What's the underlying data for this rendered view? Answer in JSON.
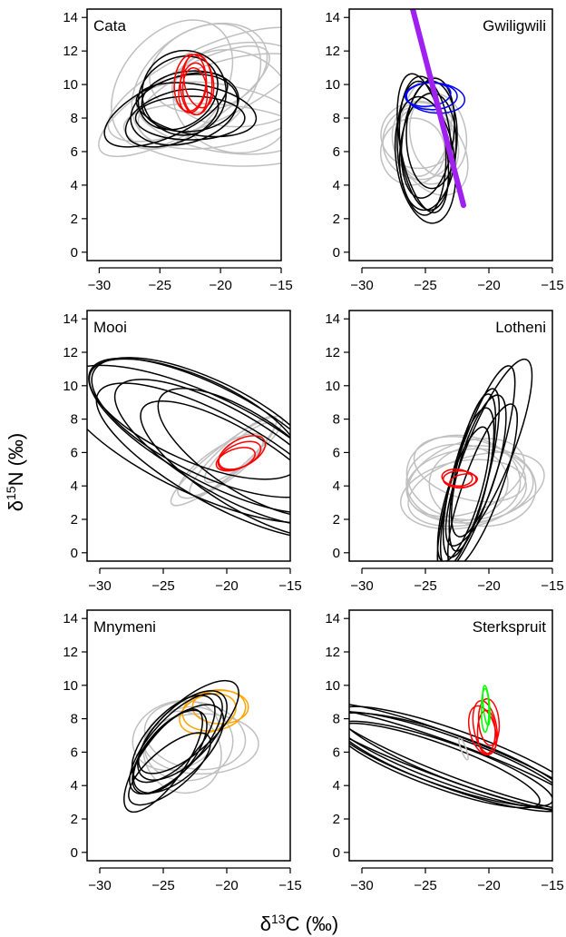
{
  "figure": {
    "xlabel_main": "δ",
    "xlabel_sup": "13",
    "xlabel_rest": "C (‰)",
    "ylabel_main": "δ",
    "ylabel_sup": "15",
    "ylabel_rest": "N (‰)"
  },
  "colors": {
    "background_ellipses": "#c0c0c0",
    "fish_ellipses": "#000000",
    "red": "#ff0000",
    "blue": "#0000ff",
    "purple": "#a020f0",
    "orange": "#ffa500",
    "green": "#00ff00"
  },
  "chart_data": [
    {
      "type": "scatter",
      "title": "Cata",
      "xlim": [
        -31,
        -15
      ],
      "ylim": [
        -0.5,
        14.5
      ],
      "xticks": [
        -30,
        -25,
        -20,
        -15
      ],
      "yticks": [
        0,
        2,
        4,
        6,
        8,
        10,
        12,
        14
      ],
      "show_xticks": true,
      "show_yticks": true,
      "series": [
        {
          "color": "gray",
          "ellipses": [
            [
              -21,
              10,
              9,
              2.2,
              25
            ],
            [
              -19,
              9,
              8,
              2.5,
              15
            ],
            [
              -22,
              10,
              6,
              3,
              40
            ],
            [
              -20,
              8,
              7,
              2,
              -10
            ],
            [
              -23,
              9,
              8,
              1.8,
              30
            ],
            [
              -18,
              10,
              6,
              2.5,
              5
            ],
            [
              -21,
              11,
              5,
              2.5,
              20
            ],
            [
              -20,
              7,
              8,
              1.8,
              -5
            ],
            [
              -24,
              10,
              6,
              3,
              50
            ],
            [
              -19,
              9,
              5,
              3,
              -20
            ]
          ]
        },
        {
          "color": "black",
          "ellipses": [
            [
              -24.5,
              8.5,
              5.5,
              1.6,
              25
            ],
            [
              -23,
              8.5,
              4.5,
              2,
              15
            ],
            [
              -22.5,
              9,
              4,
              1.8,
              5
            ],
            [
              -23.5,
              9.5,
              3.5,
              2,
              35
            ],
            [
              -22,
              8.5,
              5,
              1.5,
              -10
            ],
            [
              -24,
              8,
              4,
              1.5,
              20
            ],
            [
              -23,
              9.5,
              3.5,
              2.5,
              60
            ],
            [
              -22.5,
              8,
              4.5,
              1.3,
              0
            ]
          ]
        },
        {
          "color": "red",
          "ellipses": [
            [
              -22,
              10,
              1.3,
              1.8,
              0
            ],
            [
              -22.3,
              9.8,
              1.1,
              1.5,
              -10
            ],
            [
              -21.8,
              10.2,
              1.2,
              1.6,
              10
            ],
            [
              -22.1,
              9.6,
              1.0,
              1.4,
              5
            ],
            [
              -22.5,
              10.1,
              1.3,
              1.7,
              -5
            ]
          ]
        }
      ]
    },
    {
      "type": "scatter",
      "title": "Gwiligwili",
      "xlim": [
        -31,
        -15
      ],
      "ylim": [
        -0.5,
        14.5
      ],
      "xticks": [
        -30,
        -25,
        -20,
        -15
      ],
      "yticks": [
        0,
        2,
        4,
        6,
        8,
        10,
        12,
        14
      ],
      "show_xticks": true,
      "show_yticks": true,
      "series": [
        {
          "color": "gray",
          "ellipses": [
            [
              -25,
              6.5,
              2.5,
              2.5,
              20
            ],
            [
              -25.5,
              7,
              3,
              2,
              0
            ],
            [
              -24.5,
              6,
              2.5,
              2.8,
              30
            ],
            [
              -25,
              7.5,
              2,
              3,
              -10
            ],
            [
              -25.5,
              6.5,
              2.8,
              2.2,
              45
            ],
            [
              -24,
              7,
              2.2,
              2.5,
              10
            ],
            [
              -26,
              6,
              2.5,
              2,
              -20
            ]
          ]
        },
        {
          "color": "black",
          "ellipses": [
            [
              -25,
              6.5,
              2,
              4,
              5
            ],
            [
              -24.8,
              6,
              2.2,
              3.5,
              -5
            ],
            [
              -25.2,
              6.5,
              1.8,
              4.2,
              10
            ],
            [
              -24.5,
              7,
              2,
              3.2,
              0
            ],
            [
              -25,
              5.5,
              2.3,
              3.8,
              8
            ],
            [
              -24.8,
              6.8,
              2,
              3.6,
              -8
            ],
            [
              -25.3,
              6.2,
              1.9,
              4,
              3
            ]
          ]
        },
        {
          "color": "blue",
          "ellipses": [
            [
              -24.5,
              9.3,
              2,
              0.8,
              0
            ],
            [
              -24.2,
              9.2,
              2.3,
              0.9,
              -5
            ],
            [
              -24.8,
              9.4,
              1.8,
              0.7,
              5
            ]
          ]
        },
        {
          "color": "purple",
          "segments": [
            [
              -26,
              14.5,
              -22,
              2.8
            ]
          ]
        }
      ]
    },
    {
      "type": "scatter",
      "title": "Mooi",
      "xlim": [
        -31,
        -15
      ],
      "ylim": [
        -0.5,
        14.5
      ],
      "xticks": [
        -30,
        -25,
        -20,
        -15
      ],
      "yticks": [
        0,
        2,
        4,
        6,
        8,
        10,
        12,
        14
      ],
      "show_xticks": true,
      "show_yticks": true,
      "series": [
        {
          "color": "gray",
          "ellipses": [
            [
              -20,
              5.5,
              5.5,
              0.9,
              38
            ],
            [
              -19.5,
              5.8,
              4.5,
              0.8,
              42
            ],
            [
              -20.5,
              5.2,
              4,
              1,
              35
            ],
            [
              -19,
              6,
              3.5,
              0.7,
              40
            ]
          ]
        },
        {
          "color": "black",
          "ellipses": [
            [
              -21,
              7,
              11,
              2.8,
              -28
            ],
            [
              -20,
              6,
              10,
              2.5,
              -30
            ],
            [
              -22,
              6.5,
              12,
              3,
              -25
            ],
            [
              -19,
              5,
              9,
              2.2,
              -32
            ],
            [
              -21.5,
              7.5,
              10,
              2.8,
              -26
            ],
            [
              -20.5,
              5.5,
              11,
              2.6,
              -29
            ],
            [
              -18.5,
              6,
              8,
              2.3,
              -33
            ],
            [
              -22.5,
              8,
              9,
              2.5,
              -24
            ]
          ]
        },
        {
          "color": "red",
          "ellipses": [
            [
              -19,
              5.8,
              1.8,
              0.7,
              25
            ],
            [
              -19.3,
              5.6,
              1.6,
              0.6,
              20
            ],
            [
              -18.8,
              6,
              2,
              0.8,
              28
            ]
          ]
        }
      ]
    },
    {
      "type": "scatter",
      "title": "Lotheni",
      "xlim": [
        -31,
        -15
      ],
      "ylim": [
        -0.5,
        14.5
      ],
      "xticks": [
        -30,
        -25,
        -20,
        -15
      ],
      "yticks": [
        0,
        2,
        4,
        6,
        8,
        10,
        12,
        14
      ],
      "show_xticks": true,
      "show_yticks": true,
      "series": [
        {
          "color": "gray",
          "ellipses": [
            [
              -21.5,
              4,
              5,
              2.2,
              5
            ],
            [
              -22,
              4.5,
              4.5,
              2.5,
              -10
            ],
            [
              -21,
              3.8,
              5.5,
              2,
              15
            ],
            [
              -22.5,
              4.2,
              4,
              2.3,
              0
            ],
            [
              -21.8,
              4.5,
              4.8,
              2.1,
              20
            ],
            [
              -20.5,
              4,
              4.2,
              2.4,
              -5
            ],
            [
              -22,
              3.5,
              5,
              2,
              10
            ],
            [
              -21.5,
              5,
              4.5,
              1.8,
              -15
            ]
          ]
        },
        {
          "color": "black",
          "ellipses": [
            [
              -21,
              5,
              1.6,
              6.5,
              -18
            ],
            [
              -21.5,
              4.5,
              1.4,
              5.5,
              -15
            ],
            [
              -20.5,
              4,
              1.5,
              5.2,
              -20
            ],
            [
              -21.3,
              4.8,
              1.3,
              4.8,
              -12
            ],
            [
              -20.8,
              5.2,
              1.5,
              4.4,
              -16
            ],
            [
              -21.6,
              4.2,
              1.4,
              4.6,
              -14
            ],
            [
              -22,
              3.5,
              1.3,
              4.2,
              -17
            ],
            [
              -20,
              6,
              1.8,
              6,
              -22
            ]
          ]
        },
        {
          "color": "red",
          "ellipses": [
            [
              -22.3,
              4.4,
              1.3,
              0.5,
              0
            ],
            [
              -22,
              4.3,
              1.1,
              0.4,
              10
            ],
            [
              -22.5,
              4.5,
              1.2,
              0.5,
              -5
            ]
          ]
        }
      ]
    },
    {
      "type": "scatter",
      "title": "Mnymeni",
      "xlim": [
        -31,
        -15
      ],
      "ylim": [
        -0.5,
        14.5
      ],
      "xticks": [
        -30,
        -25,
        -20,
        -15
      ],
      "yticks": [
        0,
        2,
        4,
        6,
        8,
        10,
        12,
        14
      ],
      "show_xticks": true,
      "show_yticks": true,
      "series": [
        {
          "color": "gray",
          "ellipses": [
            [
              -23,
              6.5,
              3.5,
              2.2,
              10
            ],
            [
              -22.5,
              7,
              4,
              2,
              -10
            ],
            [
              -23.5,
              6,
              3,
              2.5,
              30
            ],
            [
              -22,
              6.5,
              4.5,
              1.8,
              0
            ],
            [
              -24,
              7,
              3.5,
              2,
              20
            ]
          ]
        },
        {
          "color": "orange",
          "ellipses": [
            [
              -21,
              8.5,
              2.5,
              1.2,
              10
            ],
            [
              -20.5,
              8.7,
              2.2,
              1,
              0
            ],
            [
              -21.5,
              8.3,
              2.3,
              1.1,
              20
            ]
          ]
        },
        {
          "color": "black",
          "ellipses": [
            [
              -24,
              6.5,
              5,
              1.5,
              48
            ],
            [
              -23.5,
              7,
              4.5,
              1.6,
              45
            ],
            [
              -24.5,
              6,
              4,
              1.4,
              50
            ],
            [
              -23,
              7.5,
              5,
              1.5,
              42
            ],
            [
              -24.2,
              6.8,
              4.3,
              1.5,
              47
            ],
            [
              -25,
              5.5,
              4.8,
              1.3,
              55
            ],
            [
              -23.8,
              6.2,
              4.5,
              1.6,
              44
            ],
            [
              -24.5,
              5,
              4,
              1.2,
              40
            ]
          ]
        }
      ]
    },
    {
      "type": "scatter",
      "title": "Sterkspruit",
      "xlim": [
        -31,
        -15
      ],
      "ylim": [
        -0.5,
        14.5
      ],
      "xticks": [
        -30,
        -25,
        -20,
        -15
      ],
      "yticks": [
        0,
        2,
        4,
        6,
        8,
        10,
        12,
        14
      ],
      "show_xticks": true,
      "show_yticks": true,
      "series": [
        {
          "color": "black",
          "ellipses": [
            [
              -23,
              5.5,
              10,
              1.4,
              -20
            ],
            [
              -22.5,
              5.7,
              11,
              1.2,
              -21
            ],
            [
              -23.5,
              5.3,
              9,
              1.3,
              -19
            ],
            [
              -22,
              5.6,
              10.5,
              1.5,
              -20.5
            ],
            [
              -23.2,
              5.5,
              11.5,
              1.1,
              -20
            ],
            [
              -22.8,
              5.4,
              10,
              1.6,
              -19.5
            ],
            [
              -24,
              5.2,
              8.5,
              1.3,
              -20
            ]
          ]
        },
        {
          "color": "red",
          "ellipses": [
            [
              -20.3,
              7.5,
              0.9,
              1.6,
              10
            ],
            [
              -20,
              7.8,
              0.8,
              1.4,
              5
            ],
            [
              -20.5,
              7.3,
              1,
              1.5,
              15
            ],
            [
              -20.2,
              7.2,
              0.7,
              1.3,
              0
            ]
          ]
        },
        {
          "color": "green",
          "ellipses": [
            [
              -20.3,
              8.5,
              0.3,
              1.3,
              0
            ],
            [
              -20.2,
              8.8,
              0.25,
              1.2,
              5
            ]
          ]
        },
        {
          "color": "gray",
          "ellipses": [
            [
              -22,
              6.2,
              0.2,
              0.7,
              20
            ]
          ]
        }
      ]
    }
  ]
}
